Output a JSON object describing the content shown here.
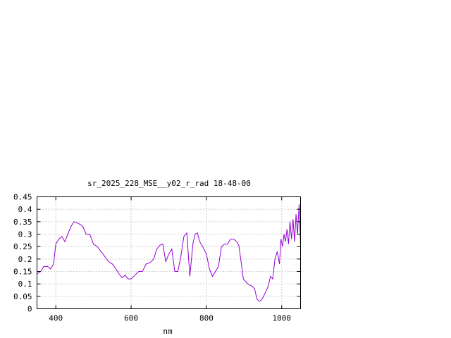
{
  "chart_data": {
    "type": "line",
    "title": "sr_2025_228_MSE__y02_r_rad 18-48-00",
    "xlabel": "nm",
    "ylabel": "",
    "xlim": [
      350,
      1050
    ],
    "ylim": [
      0,
      0.45
    ],
    "grid": true,
    "x_ticks": [
      400,
      600,
      800,
      1000
    ],
    "x_tick_labels": [
      "400",
      "600",
      "800",
      "1000"
    ],
    "y_ticks": [
      0,
      0.05,
      0.1,
      0.15,
      0.2,
      0.25,
      0.3,
      0.35,
      0.4,
      0.45
    ],
    "y_tick_labels": [
      "0",
      "0.05",
      "0.1",
      "0.15",
      "0.2",
      "0.25",
      "0.3",
      "0.35",
      "0.4",
      "0.45"
    ],
    "series": [
      {
        "color": "#9400d3",
        "x": [
          350,
          360,
          368,
          378,
          386,
          394,
          400,
          408,
          416,
          424,
          432,
          440,
          448,
          456,
          464,
          472,
          480,
          490,
          500,
          510,
          520,
          530,
          540,
          550,
          560,
          568,
          576,
          584,
          592,
          600,
          610,
          620,
          630,
          640,
          650,
          660,
          668,
          676,
          684,
          692,
          700,
          708,
          716,
          724,
          732,
          740,
          748,
          756,
          764,
          770,
          776,
          782,
          790,
          800,
          808,
          816,
          824,
          832,
          840,
          848,
          856,
          864,
          872,
          880,
          886,
          892,
          898,
          904,
          910,
          916,
          922,
          928,
          934,
          940,
          946,
          952,
          958,
          964,
          970,
          976,
          982,
          988,
          994,
          998,
          1002,
          1006,
          1010,
          1014,
          1018,
          1022,
          1026,
          1030,
          1034,
          1038,
          1042,
          1046,
          1050
        ],
        "y": [
          0.14,
          0.15,
          0.17,
          0.17,
          0.16,
          0.18,
          0.26,
          0.28,
          0.29,
          0.27,
          0.3,
          0.33,
          0.35,
          0.345,
          0.34,
          0.33,
          0.3,
          0.3,
          0.26,
          0.25,
          0.23,
          0.21,
          0.19,
          0.18,
          0.16,
          0.14,
          0.125,
          0.135,
          0.12,
          0.12,
          0.135,
          0.15,
          0.15,
          0.18,
          0.185,
          0.2,
          0.24,
          0.255,
          0.26,
          0.19,
          0.22,
          0.24,
          0.15,
          0.15,
          0.21,
          0.29,
          0.305,
          0.13,
          0.26,
          0.3,
          0.305,
          0.27,
          0.25,
          0.22,
          0.16,
          0.13,
          0.15,
          0.17,
          0.25,
          0.26,
          0.26,
          0.28,
          0.28,
          0.27,
          0.255,
          0.19,
          0.12,
          0.11,
          0.1,
          0.095,
          0.09,
          0.08,
          0.04,
          0.03,
          0.035,
          0.05,
          0.07,
          0.09,
          0.13,
          0.12,
          0.2,
          0.23,
          0.18,
          0.28,
          0.25,
          0.3,
          0.27,
          0.32,
          0.26,
          0.35,
          0.28,
          0.36,
          0.27,
          0.38,
          0.3,
          0.42,
          0.26
        ]
      }
    ]
  }
}
